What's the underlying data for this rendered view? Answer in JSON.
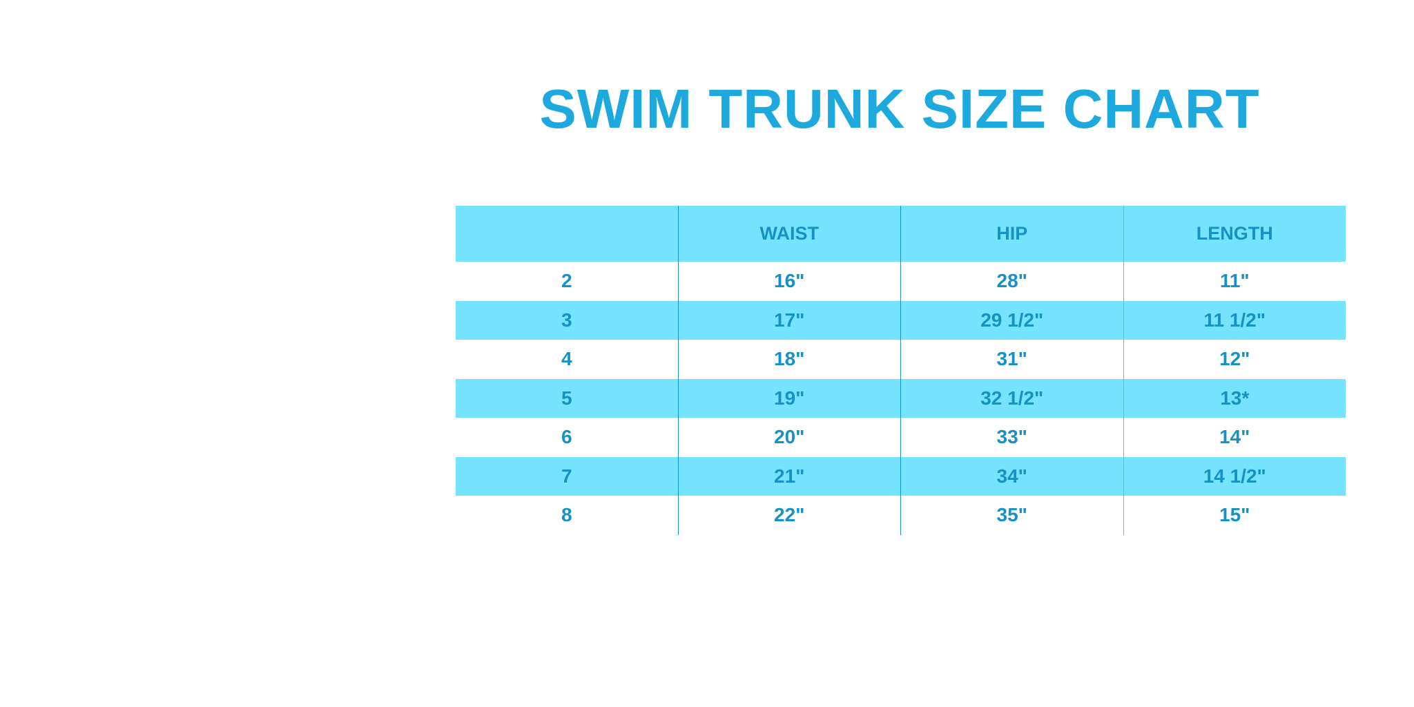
{
  "title": "SWIM TRUNK SIZE CHART",
  "colors": {
    "title": "#1DA9DE",
    "header_bg": "#75E3FD",
    "text": "#1591C3"
  },
  "table": {
    "columns": [
      "",
      "WAIST",
      "HIP",
      "LENGTH"
    ],
    "rows": [
      [
        "2",
        "16\"",
        "28\"",
        "11\""
      ],
      [
        "3",
        "17\"",
        "29 1/2\"",
        "11 1/2\""
      ],
      [
        "4",
        "18\"",
        "31\"",
        "12\""
      ],
      [
        "5",
        "19\"",
        "32 1/2\"",
        "13*"
      ],
      [
        "6",
        "20\"",
        "33\"",
        "14\""
      ],
      [
        "7",
        "21\"",
        "34\"",
        "14 1/2\""
      ],
      [
        "8",
        "22\"",
        "35\"",
        "15\""
      ]
    ]
  }
}
